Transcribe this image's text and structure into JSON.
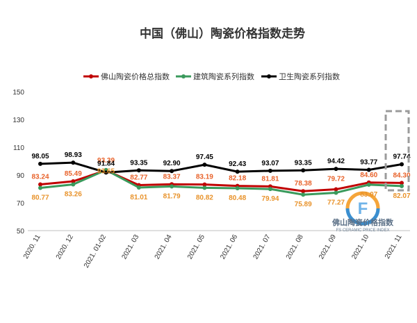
{
  "chart_data": {
    "type": "line",
    "title": "中国（佛山）陶瓷价格指数走势",
    "categories": [
      "2020. 11",
      "2020. 12",
      "2021. 01-02",
      "2021. 03",
      "2021. 04",
      "2021. 05",
      "2021. 06",
      "2021. 07",
      "2021. 08",
      "2021. 09",
      "2021. 10",
      "2021. 11"
    ],
    "yticks": [
      "150",
      "130",
      "110",
      "90",
      "70",
      "50"
    ],
    "ylim": [
      50,
      150
    ],
    "grid": false,
    "legend_position": "top",
    "series": [
      {
        "name": "佛山陶瓷价格总指数",
        "color": "#c00000",
        "values": [
          83.24,
          85.49,
          93.39,
          82.77,
          83.37,
          83.19,
          82.18,
          81.81,
          78.38,
          79.72,
          84.6,
          84.3
        ],
        "labels": [
          "83.24",
          "85.49",
          "93.39",
          "82.77",
          "83.37",
          "83.19",
          "82.18",
          "81.81",
          "78.38",
          "79.72",
          "84.60",
          "84.30"
        ],
        "label_color": "#e8622a"
      },
      {
        "name": "建筑陶瓷系列指数",
        "color": "#3a9a5c",
        "values": [
          80.77,
          83.26,
          93.65,
          81.01,
          81.79,
          80.82,
          80.48,
          79.94,
          75.89,
          77.27,
          83.07,
          82.07
        ],
        "labels": [
          "80.77",
          "83.26",
          "93.65",
          "81.01",
          "81.79",
          "80.82",
          "80.48",
          "79.94",
          "75.89",
          "77.27",
          "83.07",
          "82.07"
        ],
        "label_color": "#e8922a"
      },
      {
        "name": "卫生陶瓷系列指数",
        "color": "#000000",
        "values": [
          98.05,
          98.93,
          91.84,
          93.35,
          92.9,
          97.45,
          92.43,
          93.07,
          93.35,
          94.42,
          93.77,
          97.74
        ],
        "labels": [
          "98.05",
          "98.93",
          "91.84",
          "93.35",
          "92.90",
          "97.45",
          "92.43",
          "93.07",
          "93.35",
          "94.42",
          "93.77",
          "97.74"
        ],
        "label_color": "#000000"
      }
    ],
    "watermark": {
      "title": "佛山陶瓷价格指数",
      "subtitle": "FS CERAMIC PRICE INDEX"
    }
  }
}
